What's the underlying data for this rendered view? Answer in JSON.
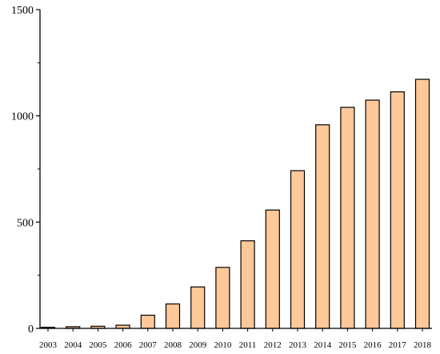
{
  "chart_data": {
    "type": "bar",
    "title": "",
    "xlabel": "",
    "ylabel": "",
    "categories": [
      "2003",
      "2004",
      "2005",
      "2006",
      "2007",
      "2008",
      "2009",
      "2010",
      "2011",
      "2012",
      "2013",
      "2014",
      "2015",
      "2016",
      "2017",
      "2018"
    ],
    "values": [
      5,
      8,
      10,
      15,
      62,
      115,
      195,
      287,
      412,
      557,
      742,
      958,
      1040,
      1074,
      1113,
      1172
    ],
    "ylim": [
      0,
      1500
    ],
    "yticks": [
      0,
      500,
      1000,
      1500
    ],
    "grid": false,
    "legend": "none",
    "bar_color": "#ffc899",
    "bar_edge_color": "#000000"
  }
}
